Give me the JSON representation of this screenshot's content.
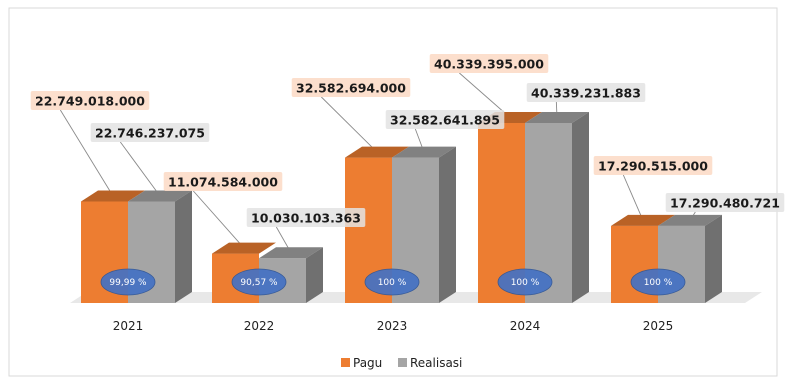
{
  "chart_data": {
    "type": "bar",
    "style": "3d-clustered-column",
    "categories": [
      "2021",
      "2022",
      "2023",
      "2024",
      "2025"
    ],
    "series": [
      {
        "name": "Pagu",
        "color": "#ED7D31",
        "values": [
          22749018000,
          11074584000,
          32582694000,
          40339395000,
          17290515000
        ],
        "labels": [
          "22.749.018.000",
          "11.074.584.000",
          "32.582.694.000",
          "40.339.395.000",
          "17.290.515.000"
        ]
      },
      {
        "name": "Realisasi",
        "color": "#A5A5A5",
        "values": [
          22746237075,
          10030103363,
          32582641895,
          40339231883,
          17290480721
        ],
        "labels": [
          "22.746.237.075",
          "10.030.103.363",
          "32.582.641.895",
          "40.339.231.883",
          "17.290.480.721"
        ]
      }
    ],
    "percent_labels": [
      "99,99 %",
      "90,57 %",
      "100 %",
      "100 %",
      "100 %"
    ],
    "ylim": [
      0,
      40339395000
    ],
    "grid": false,
    "legend_position": "bottom"
  }
}
